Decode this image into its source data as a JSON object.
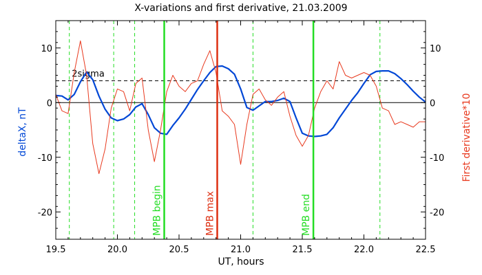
{
  "chart_data": {
    "type": "line",
    "title": "X-variations and first derivative, 21.03.2009",
    "xlabel": "UT, hours",
    "ylabel_left": "deltaX, nT",
    "ylabel_right": "First derivative*10",
    "xlim": [
      19.5,
      22.5
    ],
    "ylim": [
      -25,
      15
    ],
    "x_ticks": [
      19.5,
      20.0,
      20.5,
      21.0,
      21.5,
      22.0,
      22.5
    ],
    "x_tick_labels": [
      "19.5",
      "20.0",
      "20.5",
      "21.0",
      "21.5",
      "22.0",
      "22.5"
    ],
    "y_ticks": [
      -20,
      -10,
      0,
      10
    ],
    "y_tick_labels": [
      "-20",
      "-10",
      "0",
      "10"
    ],
    "grid": false,
    "threshold": {
      "label": "2sigma",
      "value": 4
    },
    "zero_line": 0,
    "colors": {
      "deltaX": "#0047d6",
      "derivative": "#e8391e",
      "vline_green": "#22dd22",
      "vline_red": "#dd2e10",
      "axis": "#000000"
    },
    "vlines": [
      {
        "x": 20.38,
        "label": "MPB begin",
        "color": "#22dd22"
      },
      {
        "x": 20.81,
        "label": "MPB max",
        "color": "#dd2e10"
      },
      {
        "x": 21.59,
        "label": "MPB end",
        "color": "#22dd22"
      }
    ],
    "dashed_vlines": [
      19.61,
      19.97,
      20.14,
      21.1,
      22.13
    ],
    "series": [
      {
        "key": "deltaX",
        "x": [
          19.5,
          19.55,
          19.6,
          19.65,
          19.7,
          19.75,
          19.8,
          19.85,
          19.9,
          19.95,
          20.0,
          20.05,
          20.1,
          20.15,
          20.2,
          20.25,
          20.3,
          20.35,
          20.4,
          20.45,
          20.5,
          20.55,
          20.6,
          20.65,
          20.7,
          20.75,
          20.8,
          20.85,
          20.9,
          20.95,
          21.0,
          21.05,
          21.1,
          21.15,
          21.2,
          21.25,
          21.3,
          21.35,
          21.4,
          21.45,
          21.5,
          21.55,
          21.6,
          21.65,
          21.7,
          21.75,
          21.8,
          21.85,
          21.9,
          21.95,
          22.0,
          22.05,
          22.1,
          22.15,
          22.2,
          22.25,
          22.3,
          22.35,
          22.4,
          22.45,
          22.5
        ],
        "y": [
          1.3,
          1.2,
          0.5,
          1.5,
          3.8,
          5.6,
          4.2,
          1.2,
          -1.2,
          -2.8,
          -3.3,
          -3.0,
          -2.2,
          -0.8,
          -0.2,
          -2.2,
          -4.6,
          -5.6,
          -5.8,
          -4.2,
          -2.8,
          -1.2,
          0.6,
          2.4,
          4.0,
          5.5,
          6.6,
          6.7,
          6.2,
          5.2,
          2.5,
          -0.9,
          -1.4,
          -0.6,
          0.2,
          0.2,
          0.4,
          0.8,
          0.2,
          -2.8,
          -5.6,
          -6.1,
          -6.2,
          -6.1,
          -5.8,
          -4.6,
          -2.8,
          -1.2,
          0.4,
          1.8,
          3.5,
          5.1,
          5.7,
          5.8,
          5.8,
          5.3,
          4.4,
          3.3,
          2.1,
          1.0,
          0.1
        ]
      },
      {
        "key": "derivative",
        "x": [
          19.5,
          19.55,
          19.6,
          19.65,
          19.7,
          19.75,
          19.8,
          19.85,
          19.9,
          19.95,
          20.0,
          20.05,
          20.1,
          20.15,
          20.2,
          20.25,
          20.3,
          20.35,
          20.4,
          20.45,
          20.5,
          20.55,
          20.6,
          20.65,
          20.7,
          20.75,
          20.8,
          20.85,
          20.9,
          20.95,
          21.0,
          21.05,
          21.1,
          21.15,
          21.2,
          21.25,
          21.3,
          21.35,
          21.4,
          21.45,
          21.5,
          21.55,
          21.6,
          21.65,
          21.7,
          21.75,
          21.8,
          21.85,
          21.9,
          21.95,
          22.0,
          22.05,
          22.1,
          22.15,
          22.2,
          22.25,
          22.3,
          22.35,
          22.4,
          22.45,
          22.5
        ],
        "y": [
          1.5,
          -1.5,
          -2.0,
          5.5,
          11.3,
          5.0,
          -7.5,
          -13.0,
          -8.5,
          -1.0,
          2.5,
          2.0,
          -1.5,
          3.5,
          4.5,
          -5.0,
          -10.8,
          -5.0,
          2.0,
          5.0,
          3.0,
          2.0,
          3.5,
          4.0,
          7.0,
          9.5,
          5.5,
          -1.5,
          -2.5,
          -4.0,
          -11.3,
          -4.0,
          1.5,
          2.5,
          0.5,
          -0.5,
          1.0,
          2.0,
          -2.5,
          -6.0,
          -8.0,
          -6.0,
          -1.0,
          2.0,
          4.0,
          2.5,
          7.5,
          5.0,
          4.5,
          5.0,
          5.5,
          5.0,
          3.0,
          -1.0,
          -1.5,
          -4.0,
          -3.5,
          -4.0,
          -4.5,
          -3.5,
          -3.5
        ]
      }
    ]
  }
}
